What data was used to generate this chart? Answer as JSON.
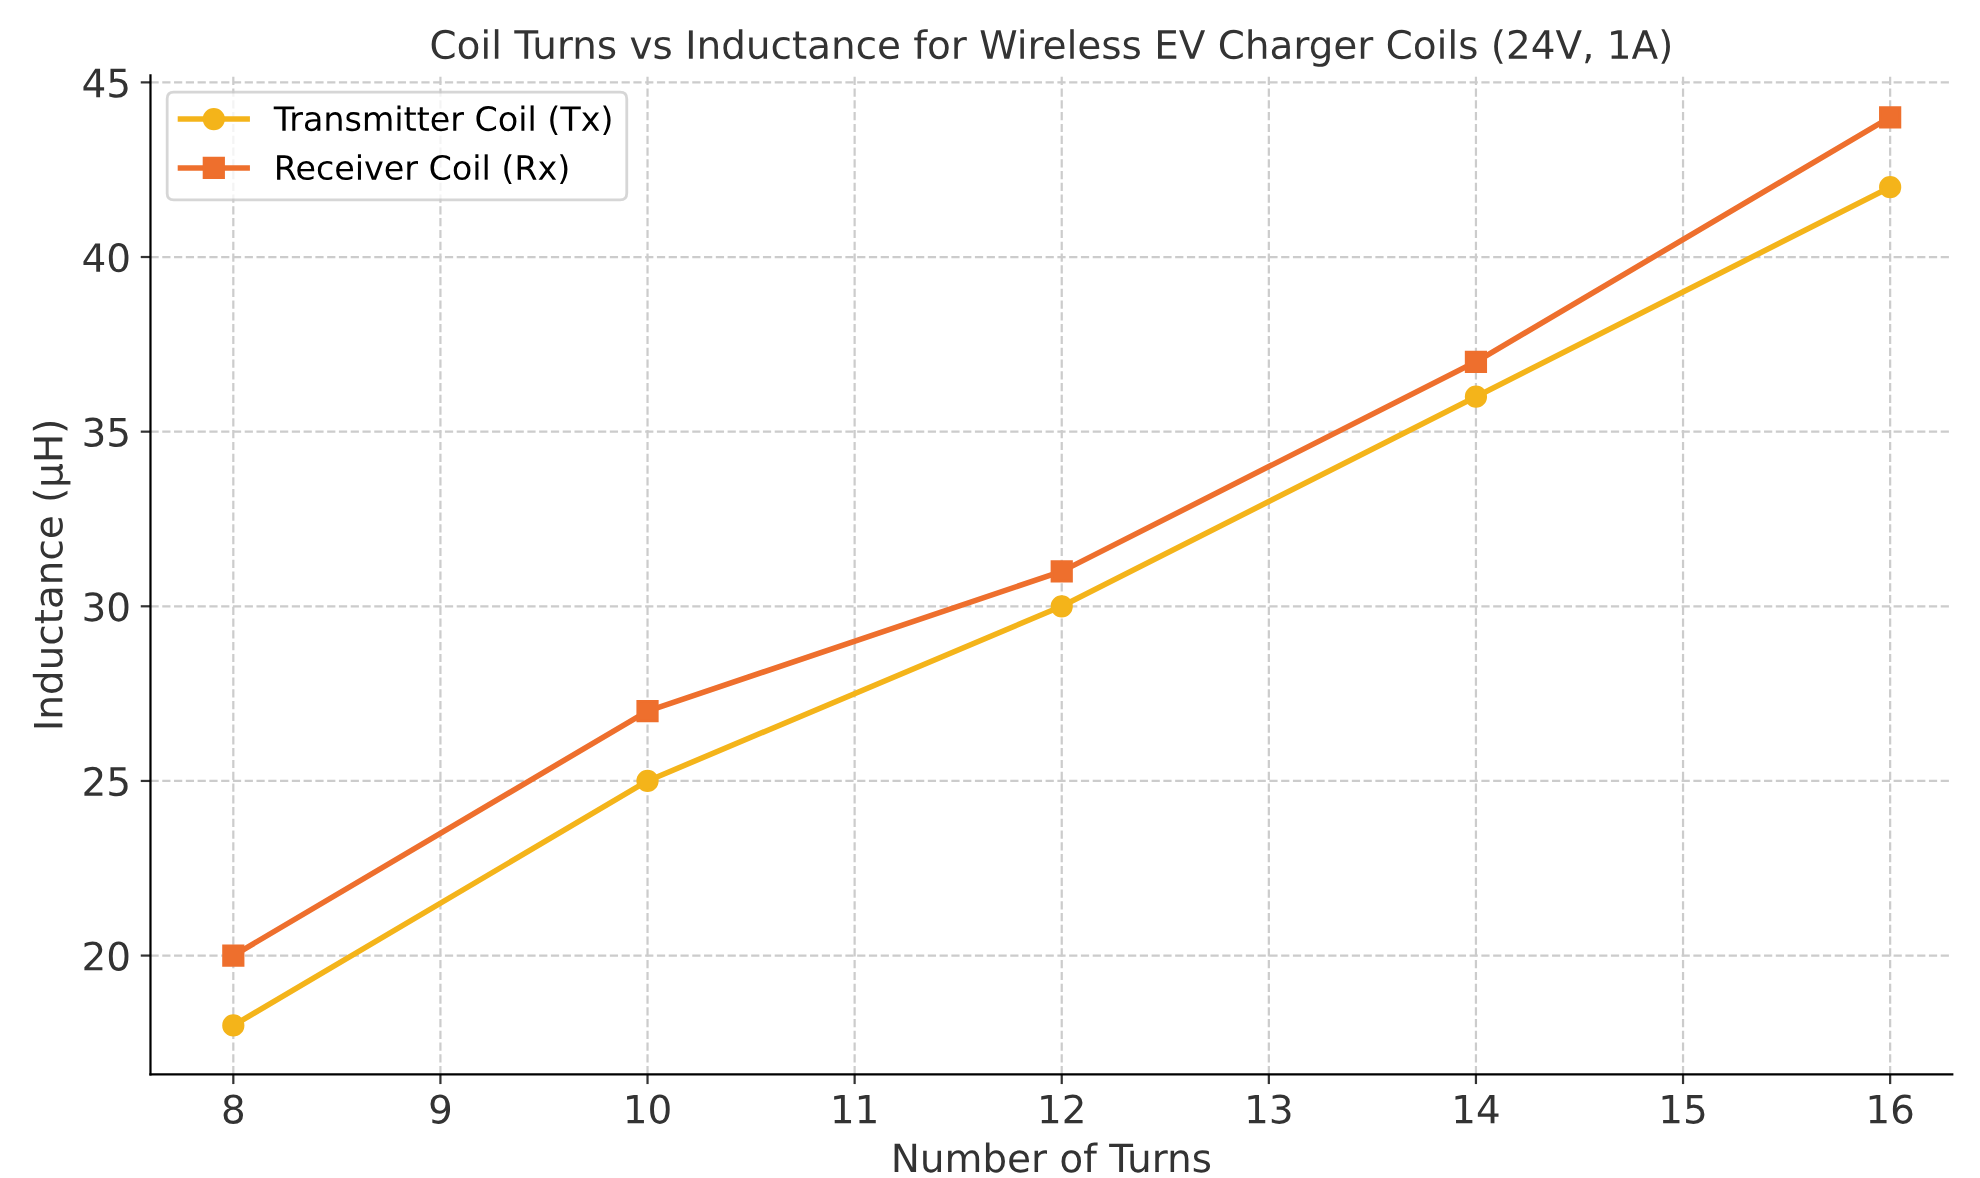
{
  "chart_data": {
    "type": "line",
    "title": "Coil Turns vs Inductance for Wireless EV Charger Coils (24V, 1A)",
    "xlabel": "Number of Turns",
    "ylabel": "Inductance (µH)",
    "x": [
      8,
      10,
      12,
      14,
      16
    ],
    "series": [
      {
        "name": "Transmitter Coil (Tx)",
        "color": "#f4b41a",
        "marker": "circle",
        "values": [
          18,
          25,
          30,
          36,
          42
        ]
      },
      {
        "name": "Receiver Coil (Rx)",
        "color": "#ee6f2d",
        "marker": "square",
        "values": [
          20,
          27,
          31,
          37,
          44
        ]
      }
    ],
    "xlim": [
      7.6,
      16.3
    ],
    "xticks": [
      8,
      9,
      10,
      11,
      12,
      13,
      14,
      15,
      16
    ],
    "ylim": [
      16.6,
      45.2
    ],
    "yticks": [
      20,
      25,
      30,
      35,
      40,
      45
    ],
    "grid": true,
    "legend": "top left",
    "line_style": "solid"
  }
}
